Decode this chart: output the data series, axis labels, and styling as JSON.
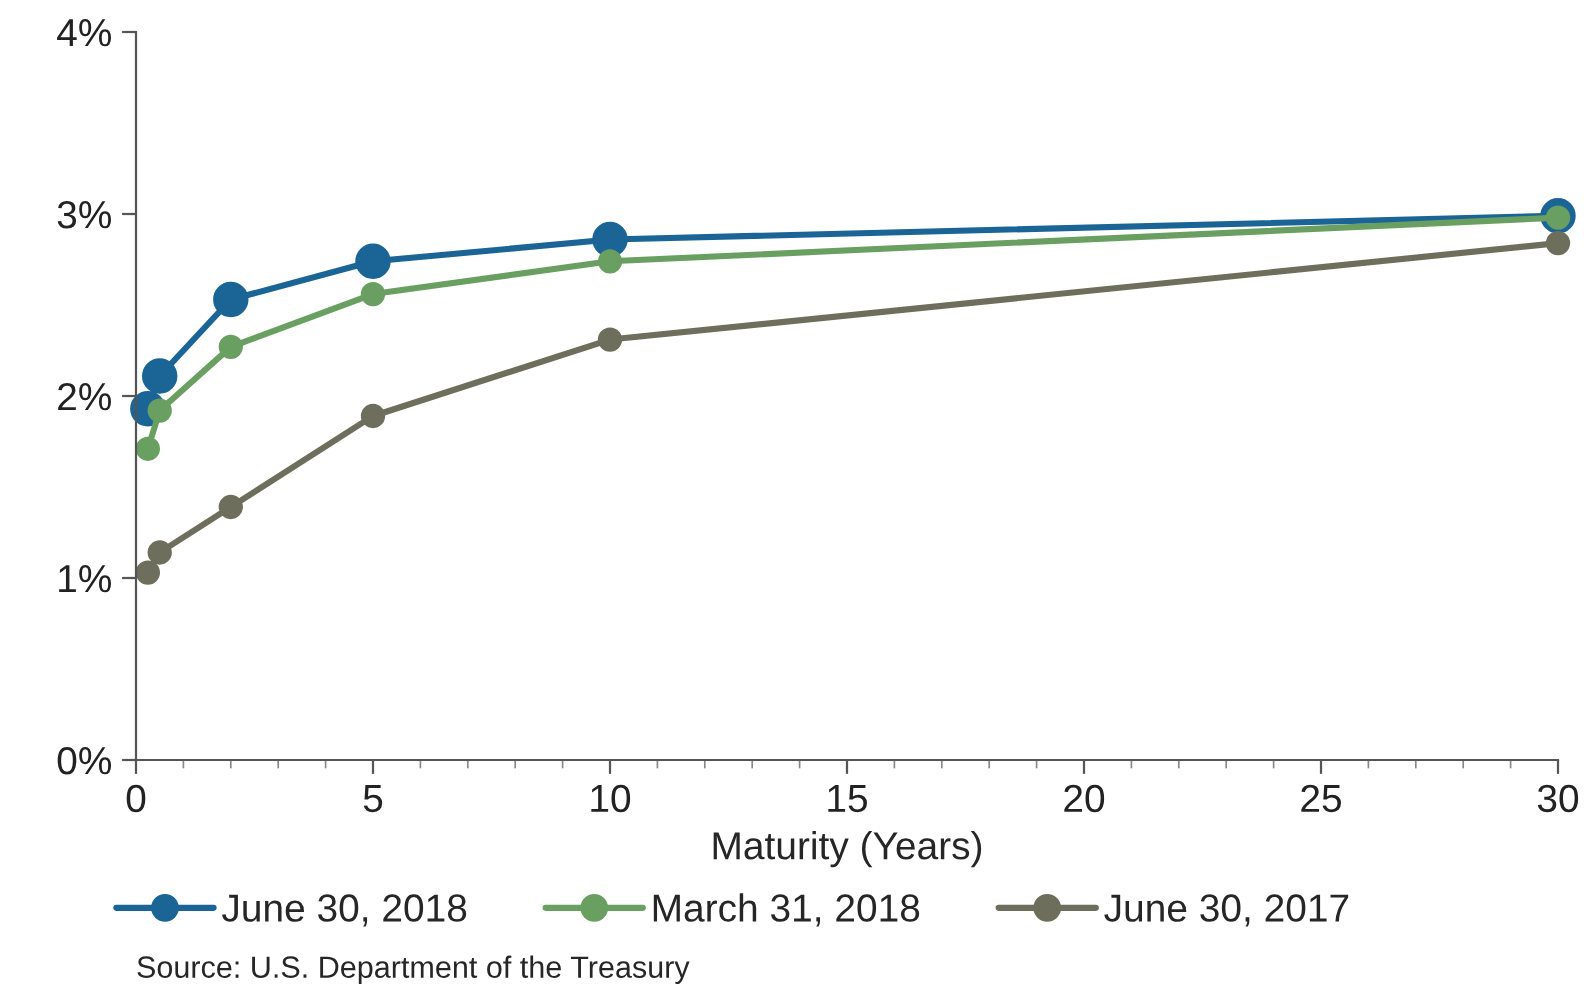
{
  "chart_data": {
    "type": "line",
    "xlabel": "Maturity (Years)",
    "x": [
      0.25,
      0.5,
      2,
      5,
      10,
      30
    ],
    "series": [
      {
        "name": "June 30, 2018",
        "color": "#1a6496",
        "values": [
          1.93,
          2.11,
          2.53,
          2.74,
          2.86,
          2.99
        ]
      },
      {
        "name": "March 31, 2018",
        "color": "#6a9f62",
        "values": [
          1.71,
          1.92,
          2.27,
          2.56,
          2.74,
          2.98
        ]
      },
      {
        "name": "June 30, 2017",
        "color": "#6e6e5c",
        "values": [
          1.03,
          1.14,
          1.39,
          1.89,
          2.31,
          2.84
        ]
      }
    ],
    "xlim": [
      0,
      30
    ],
    "xticks": [
      0,
      5,
      10,
      15,
      20,
      25,
      30
    ],
    "ylim": [
      0,
      4
    ],
    "yticks": [
      {
        "value": 0,
        "label": "0%"
      },
      {
        "value": 1,
        "label": "1%"
      },
      {
        "value": 2,
        "label": "2%"
      },
      {
        "value": 3,
        "label": "3%"
      },
      {
        "value": 4,
        "label": "4%"
      }
    ],
    "grid": false,
    "legend": "bottom",
    "marker": "circle",
    "line_style": "solid",
    "annotations": [
      "Source: U.S. Department of the Treasury"
    ]
  }
}
